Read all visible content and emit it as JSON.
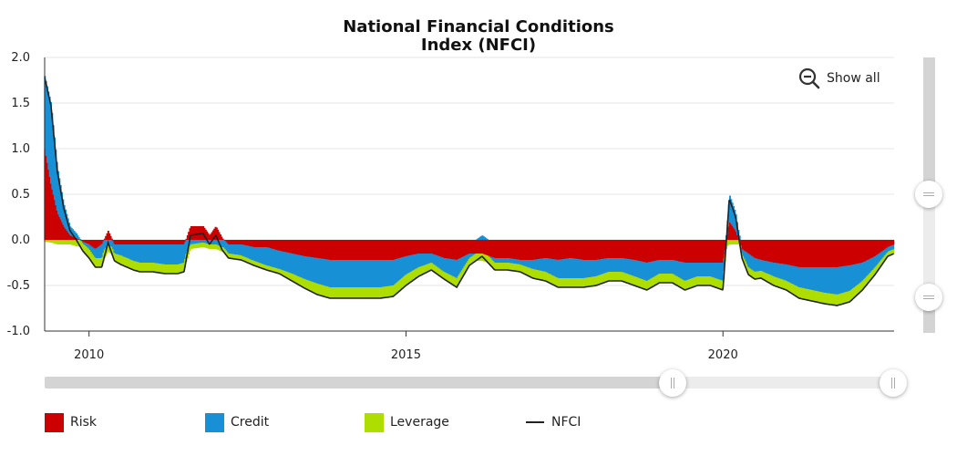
{
  "chart_data": {
    "type": "area",
    "title_line1": "National Financial Conditions",
    "title_line2": "Index (NFCI)",
    "yticks": [
      "2.0",
      "1.5",
      "1.0",
      "0.5",
      "0.0",
      "-0.5",
      "-1.0"
    ],
    "ylim": [
      -1.0,
      2.0
    ],
    "xlim": [
      2009.3,
      2022.7
    ],
    "xticks": [
      {
        "label": "2010",
        "value": 2010
      },
      {
        "label": "2015",
        "value": 2015
      },
      {
        "label": "2020",
        "value": 2020
      }
    ],
    "legend": [
      {
        "name": "Risk",
        "color": "#cc0000"
      },
      {
        "name": "Credit",
        "color": "#1890d6"
      },
      {
        "name": "Leverage",
        "color": "#aedd00"
      },
      {
        "name": "NFCI",
        "color": "#222222"
      }
    ],
    "x": [
      2009.3,
      2009.4,
      2009.5,
      2009.6,
      2009.7,
      2009.8,
      2009.9,
      2010.0,
      2010.1,
      2010.2,
      2010.3,
      2010.4,
      2010.5,
      2010.6,
      2010.7,
      2010.8,
      2011.0,
      2011.2,
      2011.4,
      2011.5,
      2011.6,
      2011.8,
      2011.9,
      2012.0,
      2012.1,
      2012.2,
      2012.4,
      2012.6,
      2012.8,
      2013.0,
      2013.2,
      2013.4,
      2013.6,
      2013.8,
      2014.0,
      2014.2,
      2014.4,
      2014.6,
      2014.8,
      2015.0,
      2015.2,
      2015.4,
      2015.6,
      2015.8,
      2016.0,
      2016.2,
      2016.4,
      2016.6,
      2016.8,
      2017.0,
      2017.2,
      2017.4,
      2017.6,
      2017.8,
      2018.0,
      2018.2,
      2018.4,
      2018.6,
      2018.8,
      2019.0,
      2019.2,
      2019.4,
      2019.6,
      2019.8,
      2020.0,
      2020.1,
      2020.2,
      2020.3,
      2020.4,
      2020.5,
      2020.6,
      2020.8,
      2021.0,
      2021.2,
      2021.4,
      2021.6,
      2021.8,
      2022.0,
      2022.2,
      2022.4,
      2022.6,
      2022.7
    ],
    "series": [
      {
        "name": "Risk",
        "values": [
          1.0,
          0.6,
          0.3,
          0.15,
          0.05,
          0.02,
          -0.02,
          -0.05,
          -0.1,
          -0.05,
          0.1,
          -0.05,
          -0.05,
          -0.05,
          -0.05,
          -0.05,
          -0.05,
          -0.05,
          -0.05,
          -0.05,
          0.15,
          0.15,
          0.05,
          0.15,
          0.02,
          -0.05,
          -0.05,
          -0.08,
          -0.08,
          -0.12,
          -0.15,
          -0.18,
          -0.2,
          -0.22,
          -0.22,
          -0.22,
          -0.22,
          -0.22,
          -0.22,
          -0.18,
          -0.15,
          -0.15,
          -0.2,
          -0.22,
          -0.15,
          -0.15,
          -0.2,
          -0.2,
          -0.22,
          -0.22,
          -0.2,
          -0.22,
          -0.2,
          -0.22,
          -0.22,
          -0.2,
          -0.2,
          -0.22,
          -0.25,
          -0.22,
          -0.22,
          -0.25,
          -0.25,
          -0.25,
          -0.25,
          0.2,
          0.1,
          -0.1,
          -0.15,
          -0.2,
          -0.22,
          -0.25,
          -0.27,
          -0.3,
          -0.3,
          -0.3,
          -0.3,
          -0.28,
          -0.25,
          -0.18,
          -0.08,
          -0.05
        ]
      },
      {
        "name": "Credit",
        "values": [
          0.8,
          0.9,
          0.5,
          0.25,
          0.1,
          0.05,
          -0.02,
          -0.05,
          -0.1,
          -0.15,
          -0.05,
          -0.1,
          -0.12,
          -0.15,
          -0.18,
          -0.2,
          -0.2,
          -0.22,
          -0.22,
          -0.2,
          -0.05,
          -0.03,
          -0.05,
          -0.05,
          -0.08,
          -0.1,
          -0.12,
          -0.15,
          -0.2,
          -0.2,
          -0.22,
          -0.25,
          -0.28,
          -0.3,
          -0.3,
          -0.3,
          -0.3,
          -0.3,
          -0.28,
          -0.2,
          -0.15,
          -0.1,
          -0.15,
          -0.2,
          -0.05,
          0.05,
          -0.05,
          -0.05,
          -0.05,
          -0.1,
          -0.15,
          -0.2,
          -0.22,
          -0.2,
          -0.18,
          -0.15,
          -0.15,
          -0.18,
          -0.2,
          -0.15,
          -0.15,
          -0.2,
          -0.15,
          -0.15,
          -0.2,
          0.3,
          0.2,
          -0.05,
          -0.15,
          -0.15,
          -0.12,
          -0.15,
          -0.18,
          -0.22,
          -0.25,
          -0.28,
          -0.3,
          -0.28,
          -0.2,
          -0.12,
          -0.05,
          -0.05
        ]
      },
      {
        "name": "Leverage",
        "values": [
          -0.02,
          -0.03,
          -0.05,
          -0.05,
          -0.05,
          -0.07,
          -0.08,
          -0.1,
          -0.1,
          -0.1,
          -0.08,
          -0.08,
          -0.1,
          -0.1,
          -0.1,
          -0.1,
          -0.1,
          -0.1,
          -0.1,
          -0.1,
          -0.05,
          -0.05,
          -0.05,
          -0.05,
          -0.05,
          -0.05,
          -0.05,
          -0.05,
          -0.05,
          -0.05,
          -0.08,
          -0.1,
          -0.12,
          -0.12,
          -0.12,
          -0.12,
          -0.12,
          -0.12,
          -0.12,
          -0.12,
          -0.1,
          -0.08,
          -0.08,
          -0.1,
          -0.08,
          -0.08,
          -0.08,
          -0.08,
          -0.08,
          -0.1,
          -0.1,
          -0.1,
          -0.1,
          -0.1,
          -0.1,
          -0.1,
          -0.1,
          -0.1,
          -0.1,
          -0.1,
          -0.1,
          -0.1,
          -0.1,
          -0.1,
          -0.1,
          -0.05,
          -0.05,
          -0.05,
          -0.08,
          -0.08,
          -0.08,
          -0.1,
          -0.1,
          -0.12,
          -0.12,
          -0.12,
          -0.12,
          -0.12,
          -0.1,
          -0.08,
          -0.05,
          -0.05
        ]
      },
      {
        "name": "NFCI",
        "values": [
          1.78,
          1.47,
          0.75,
          0.35,
          0.1,
          0.0,
          -0.12,
          -0.2,
          -0.3,
          -0.3,
          -0.03,
          -0.23,
          -0.27,
          -0.3,
          -0.33,
          -0.35,
          -0.35,
          -0.37,
          -0.37,
          -0.35,
          0.05,
          0.07,
          -0.05,
          0.05,
          -0.11,
          -0.2,
          -0.22,
          -0.28,
          -0.33,
          -0.37,
          -0.45,
          -0.53,
          -0.6,
          -0.64,
          -0.64,
          -0.64,
          -0.64,
          -0.64,
          -0.62,
          -0.5,
          -0.4,
          -0.33,
          -0.43,
          -0.52,
          -0.28,
          -0.18,
          -0.33,
          -0.33,
          -0.35,
          -0.42,
          -0.45,
          -0.52,
          -0.52,
          -0.52,
          -0.5,
          -0.45,
          -0.45,
          -0.5,
          -0.55,
          -0.47,
          -0.47,
          -0.55,
          -0.5,
          -0.5,
          -0.55,
          0.45,
          0.25,
          -0.2,
          -0.38,
          -0.43,
          -0.42,
          -0.5,
          -0.55,
          -0.64,
          -0.67,
          -0.7,
          -0.72,
          -0.68,
          -0.55,
          -0.38,
          -0.18,
          -0.15
        ]
      }
    ]
  },
  "controls": {
    "show_all_label": "Show all"
  }
}
